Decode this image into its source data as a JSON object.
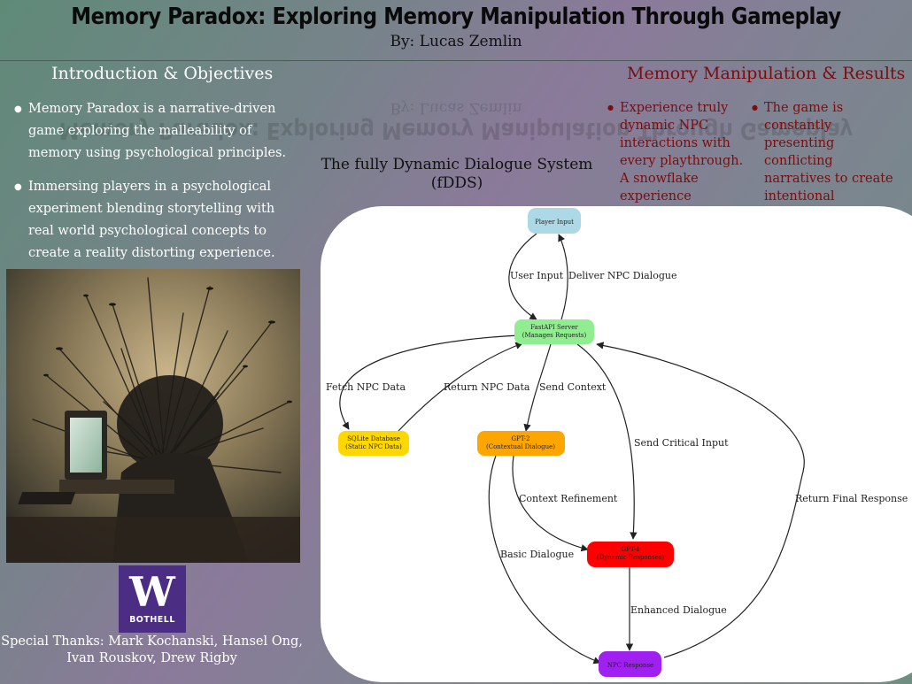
{
  "header": {
    "title": "Memory Paradox: Exploring Memory Manipulation Through Gameplay",
    "byline": "By: Lucas Zemlin"
  },
  "intro": {
    "heading": "Introduction & Objectives",
    "bullets": [
      "Memory Paradox is a narrative-driven game exploring the malleability of memory using psychological principles.",
      "Immersing players in a psychological experiment blending storytelling with real world psychological concepts to create a reality distorting experience."
    ]
  },
  "results": {
    "heading": "Memory Manipulation & Results",
    "bullets": [
      "Experience truly dynamic NPC interactions with every playthrough. A snowflake experience",
      "The game is constantly presenting conflicting narratives to create intentional cognitive dissonance for the player."
    ]
  },
  "diagram": {
    "title": "The fully Dynamic Dialogue System (fDDS)",
    "nodes": {
      "player": {
        "line1": "Player Input",
        "color": "#add8e6"
      },
      "server": {
        "line1": "FastAPI Server",
        "line2": "(Manages Requests)",
        "color": "#90ee90"
      },
      "sqlite": {
        "line1": "SQLite Database",
        "line2": "(Static NPC Data)",
        "color": "#ffd700"
      },
      "gpt2": {
        "line1": "GPT-2",
        "line2": "(Contextual Dialogue)",
        "color": "#ffa500"
      },
      "gpt4": {
        "line1": "GPT-4",
        "line2": "(Dynamic Responses)",
        "color": "#ff0000"
      },
      "npc": {
        "line1": "NPC Response",
        "color": "#a020f0"
      }
    },
    "edges": {
      "user_input": "User Input",
      "deliver": "Deliver NPC Dialogue",
      "fetch": "Fetch NPC Data",
      "return_npc": "Return NPC Data",
      "send_context": "Send Context",
      "send_critical": "Send Critical Input",
      "context_refinement": "Context Refinement",
      "basic_dialogue": "Basic Dialogue",
      "enhanced_dialogue": "Enhanced Dialogue",
      "return_final": "Return Final Response"
    }
  },
  "logo": {
    "letter": "W",
    "text": "BOTHELL",
    "color": "#4b2e83"
  },
  "thanks": "Special Thanks: Mark Kochanski, Hansel Ong, Ivan Rouskov, Drew Rigby"
}
